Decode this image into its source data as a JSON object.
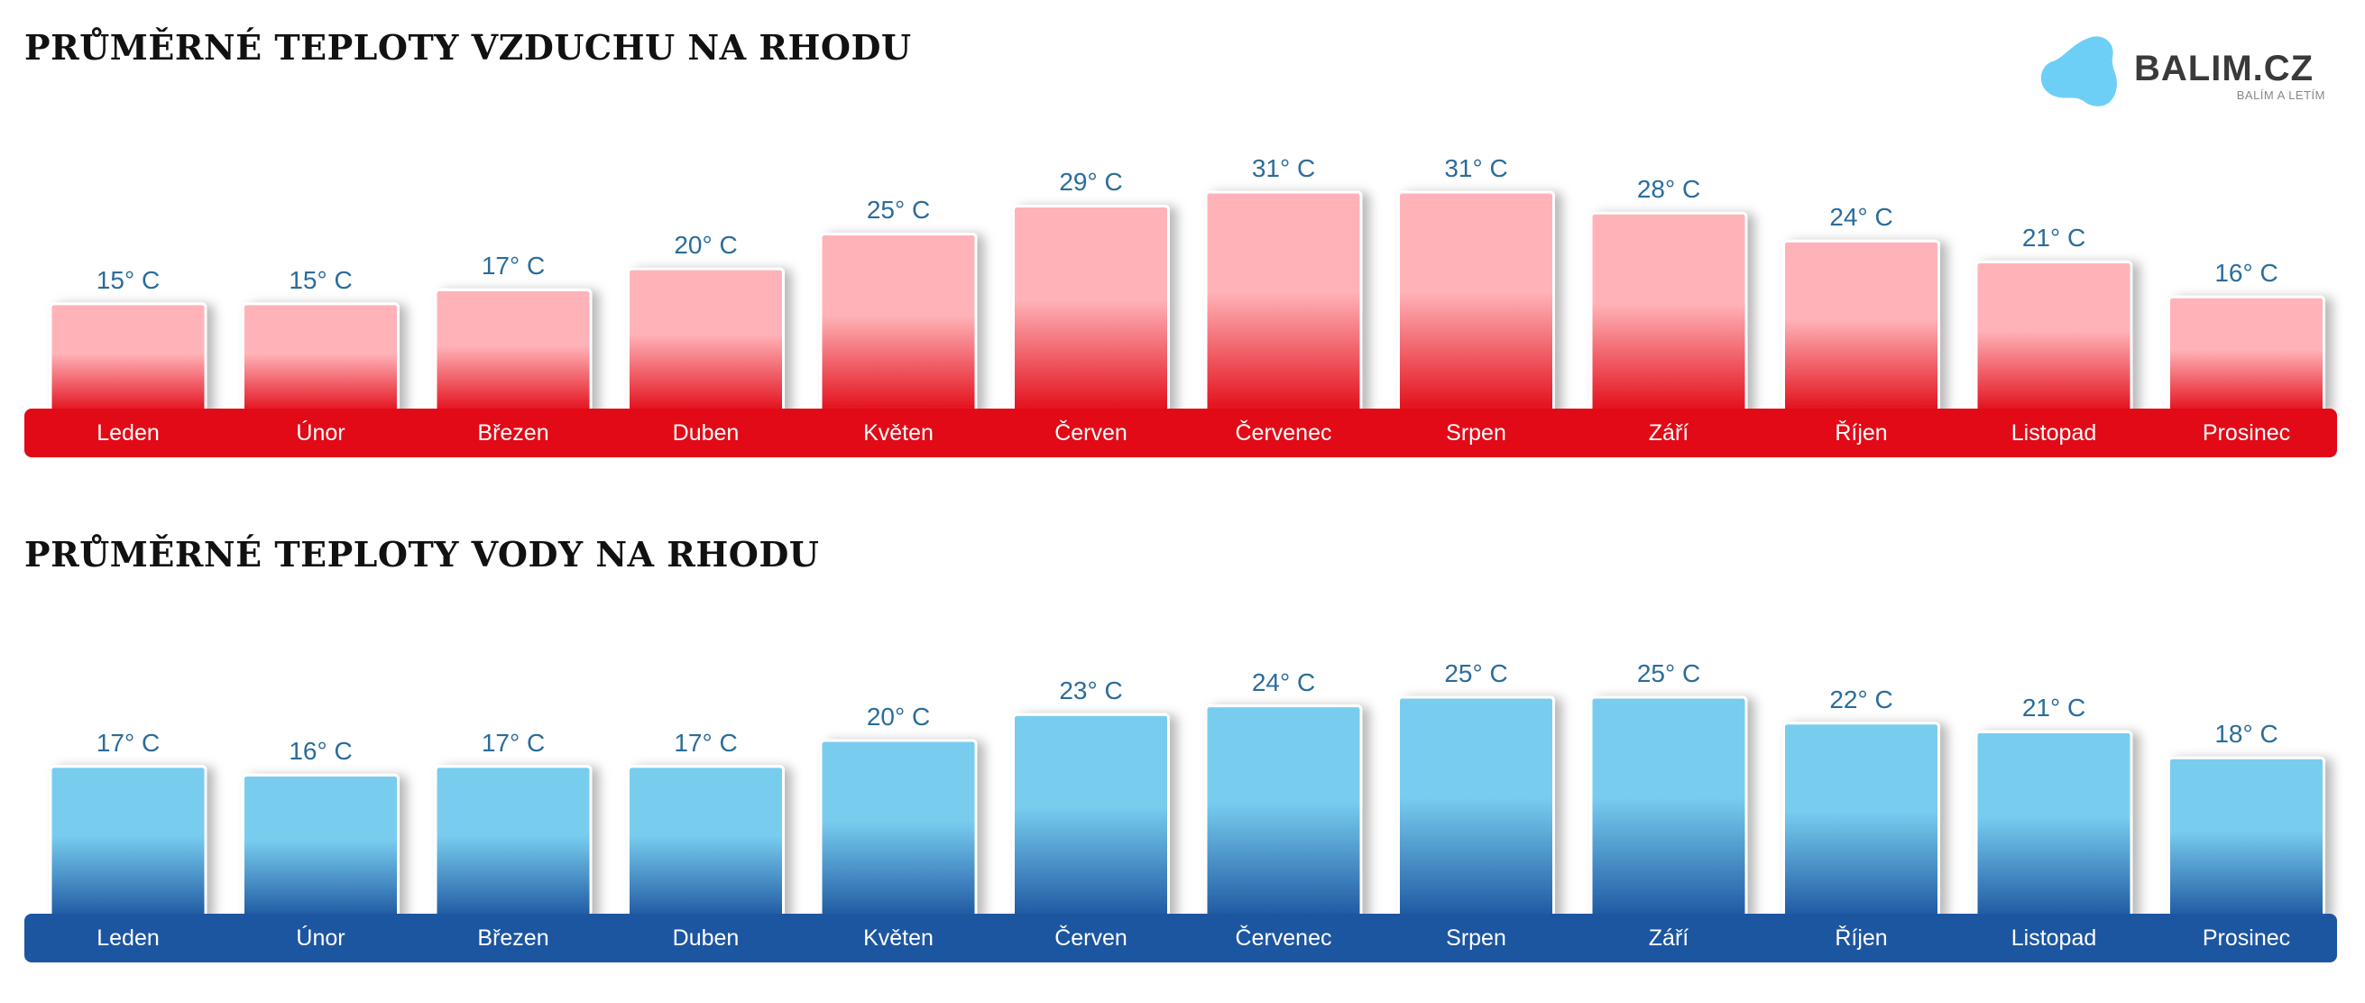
{
  "logo": {
    "name": "BALIM.CZ",
    "tagline": "BALÍM A LETÍM",
    "color": "#6ecff6"
  },
  "unit": "° C",
  "chart_data": [
    {
      "type": "bar",
      "title": "PRŮMĚRNÉ TEPLOTY VZDUCHU NA RHODU",
      "categories": [
        "Leden",
        "Únor",
        "Březen",
        "Duben",
        "Květen",
        "Červen",
        "Červenec",
        "Srpen",
        "Září",
        "Říjen",
        "Listopad",
        "Prosinec"
      ],
      "values": [
        15,
        15,
        17,
        20,
        25,
        29,
        31,
        31,
        28,
        24,
        21,
        16
      ],
      "value_labels": [
        "15° C",
        "15° C",
        "17° C",
        "20° C",
        "25° C",
        "29° C",
        "31° C",
        "31° C",
        "28° C",
        "24° C",
        "21° C",
        "16° C"
      ],
      "xlabel": "",
      "ylabel": "",
      "ylim": [
        0,
        31
      ],
      "colors": {
        "bar_top": "#ffb3b8",
        "bar_bottom": "#e20a16",
        "band": "#e20a16",
        "value_text": "#2b6c9a"
      }
    },
    {
      "type": "bar",
      "title": "PRŮMĚRNÉ TEPLOTY VODY NA RHODU",
      "categories": [
        "Leden",
        "Únor",
        "Březen",
        "Duben",
        "Květen",
        "Červen",
        "Červenec",
        "Srpen",
        "Září",
        "Říjen",
        "Listopad",
        "Prosinec"
      ],
      "values": [
        17,
        16,
        17,
        17,
        20,
        23,
        24,
        25,
        25,
        22,
        21,
        18
      ],
      "value_labels": [
        "17° C",
        "16° C",
        "17° C",
        "17° C",
        "20° C",
        "23° C",
        "24° C",
        "25° C",
        "25° C",
        "22° C",
        "21° C",
        "18° C"
      ],
      "xlabel": "",
      "ylabel": "",
      "ylim": [
        0,
        25
      ],
      "colors": {
        "bar_top": "#78cdef",
        "bar_bottom": "#1d56a0",
        "band": "#1d56a0",
        "value_text": "#2b6c9a"
      }
    }
  ]
}
